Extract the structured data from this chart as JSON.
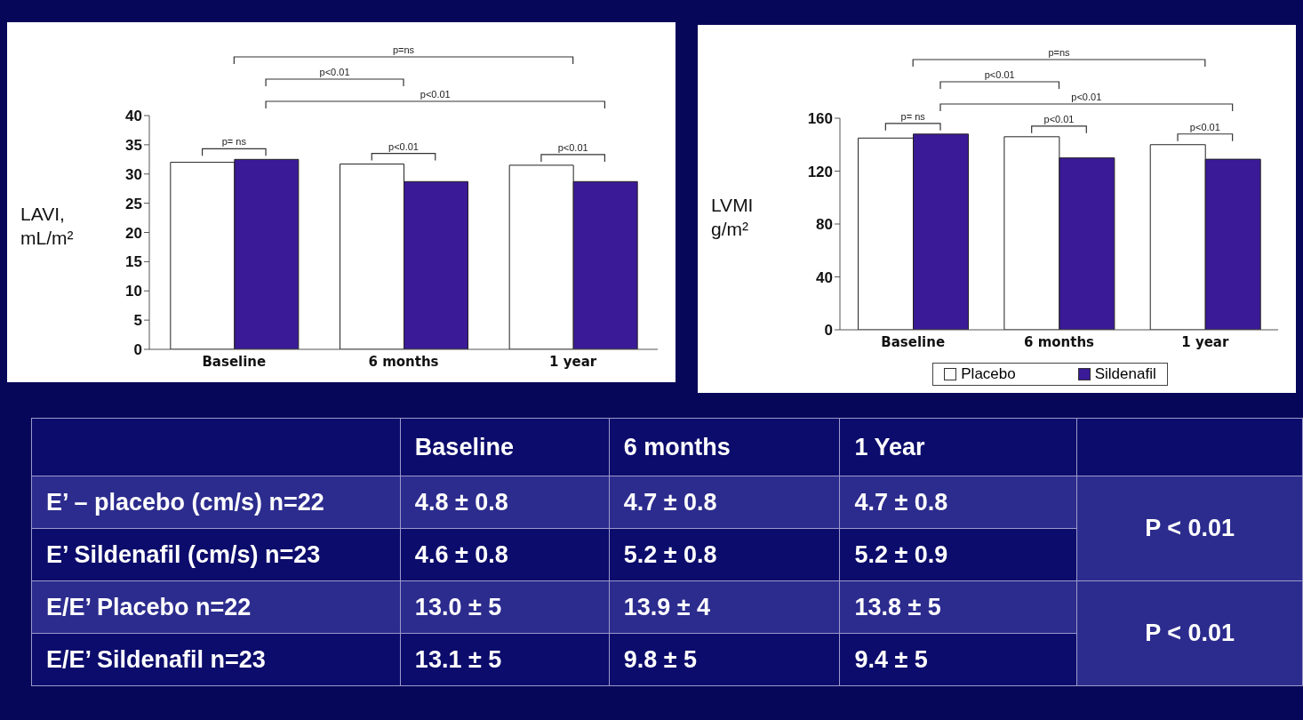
{
  "chart_data": [
    {
      "type": "bar",
      "ylabel": "LAVI, mL/m²",
      "categories": [
        "Baseline",
        "6 months",
        "1 year"
      ],
      "series": [
        {
          "color": "#ffffff",
          "values": [
            32,
            31.7,
            31.5
          ]
        },
        {
          "color": "#3a1a96",
          "values": [
            32.5,
            28.7,
            28.7
          ]
        }
      ],
      "ylim": [
        0,
        40
      ],
      "yticks": [
        0,
        5,
        10,
        15,
        20,
        25,
        30,
        35,
        40
      ],
      "grid": false,
      "legend": false,
      "annotations": [
        "p=ns",
        "p<0.01",
        "p<0.01",
        "p= ns",
        "p<0.01",
        "p<0.01"
      ]
    },
    {
      "type": "bar",
      "ylabel": "LVMI g/m²",
      "categories": [
        "Baseline",
        "6 months",
        "1 year"
      ],
      "series": [
        {
          "name": "Placebo",
          "color": "#ffffff",
          "values": [
            145,
            146,
            140
          ]
        },
        {
          "name": "Sildenafil",
          "color": "#3a1a96",
          "values": [
            148,
            130,
            129
          ]
        }
      ],
      "ylim": [
        0,
        160
      ],
      "yticks": [
        0,
        40,
        80,
        120,
        160
      ],
      "grid": false,
      "legend": "bottom",
      "annotations": [
        "p=ns",
        "p<0.01",
        "p<0.01",
        "p= ns",
        "p<0.01",
        "p<0.01"
      ]
    },
    {
      "type": "other",
      "categories": [
        "Baseline",
        "6 months",
        "1 Year"
      ],
      "y_categories": [
        "E’ – placebo (cm/s) n=22",
        "E’ Sildenafil (cm/s) n=23",
        "E/E’ Placebo n=22",
        "E/E’ Sildenafil n=23"
      ],
      "cell_labels": [
        [
          "4.8 ± 0.8",
          "4.7 ± 0.8",
          "4.7 ± 0.8"
        ],
        [
          "4.6 ± 0.8",
          "5.2 ± 0.8",
          "5.2 ± 0.9"
        ],
        [
          "13.0 ± 5",
          "13.9 ± 4",
          "13.8 ± 5"
        ],
        [
          "13.1 ± 5",
          "9.8 ± 5",
          "9.4 ± 5"
        ]
      ],
      "annotations": [
        "P < 0.01",
        "P < 0.01"
      ]
    }
  ]
}
